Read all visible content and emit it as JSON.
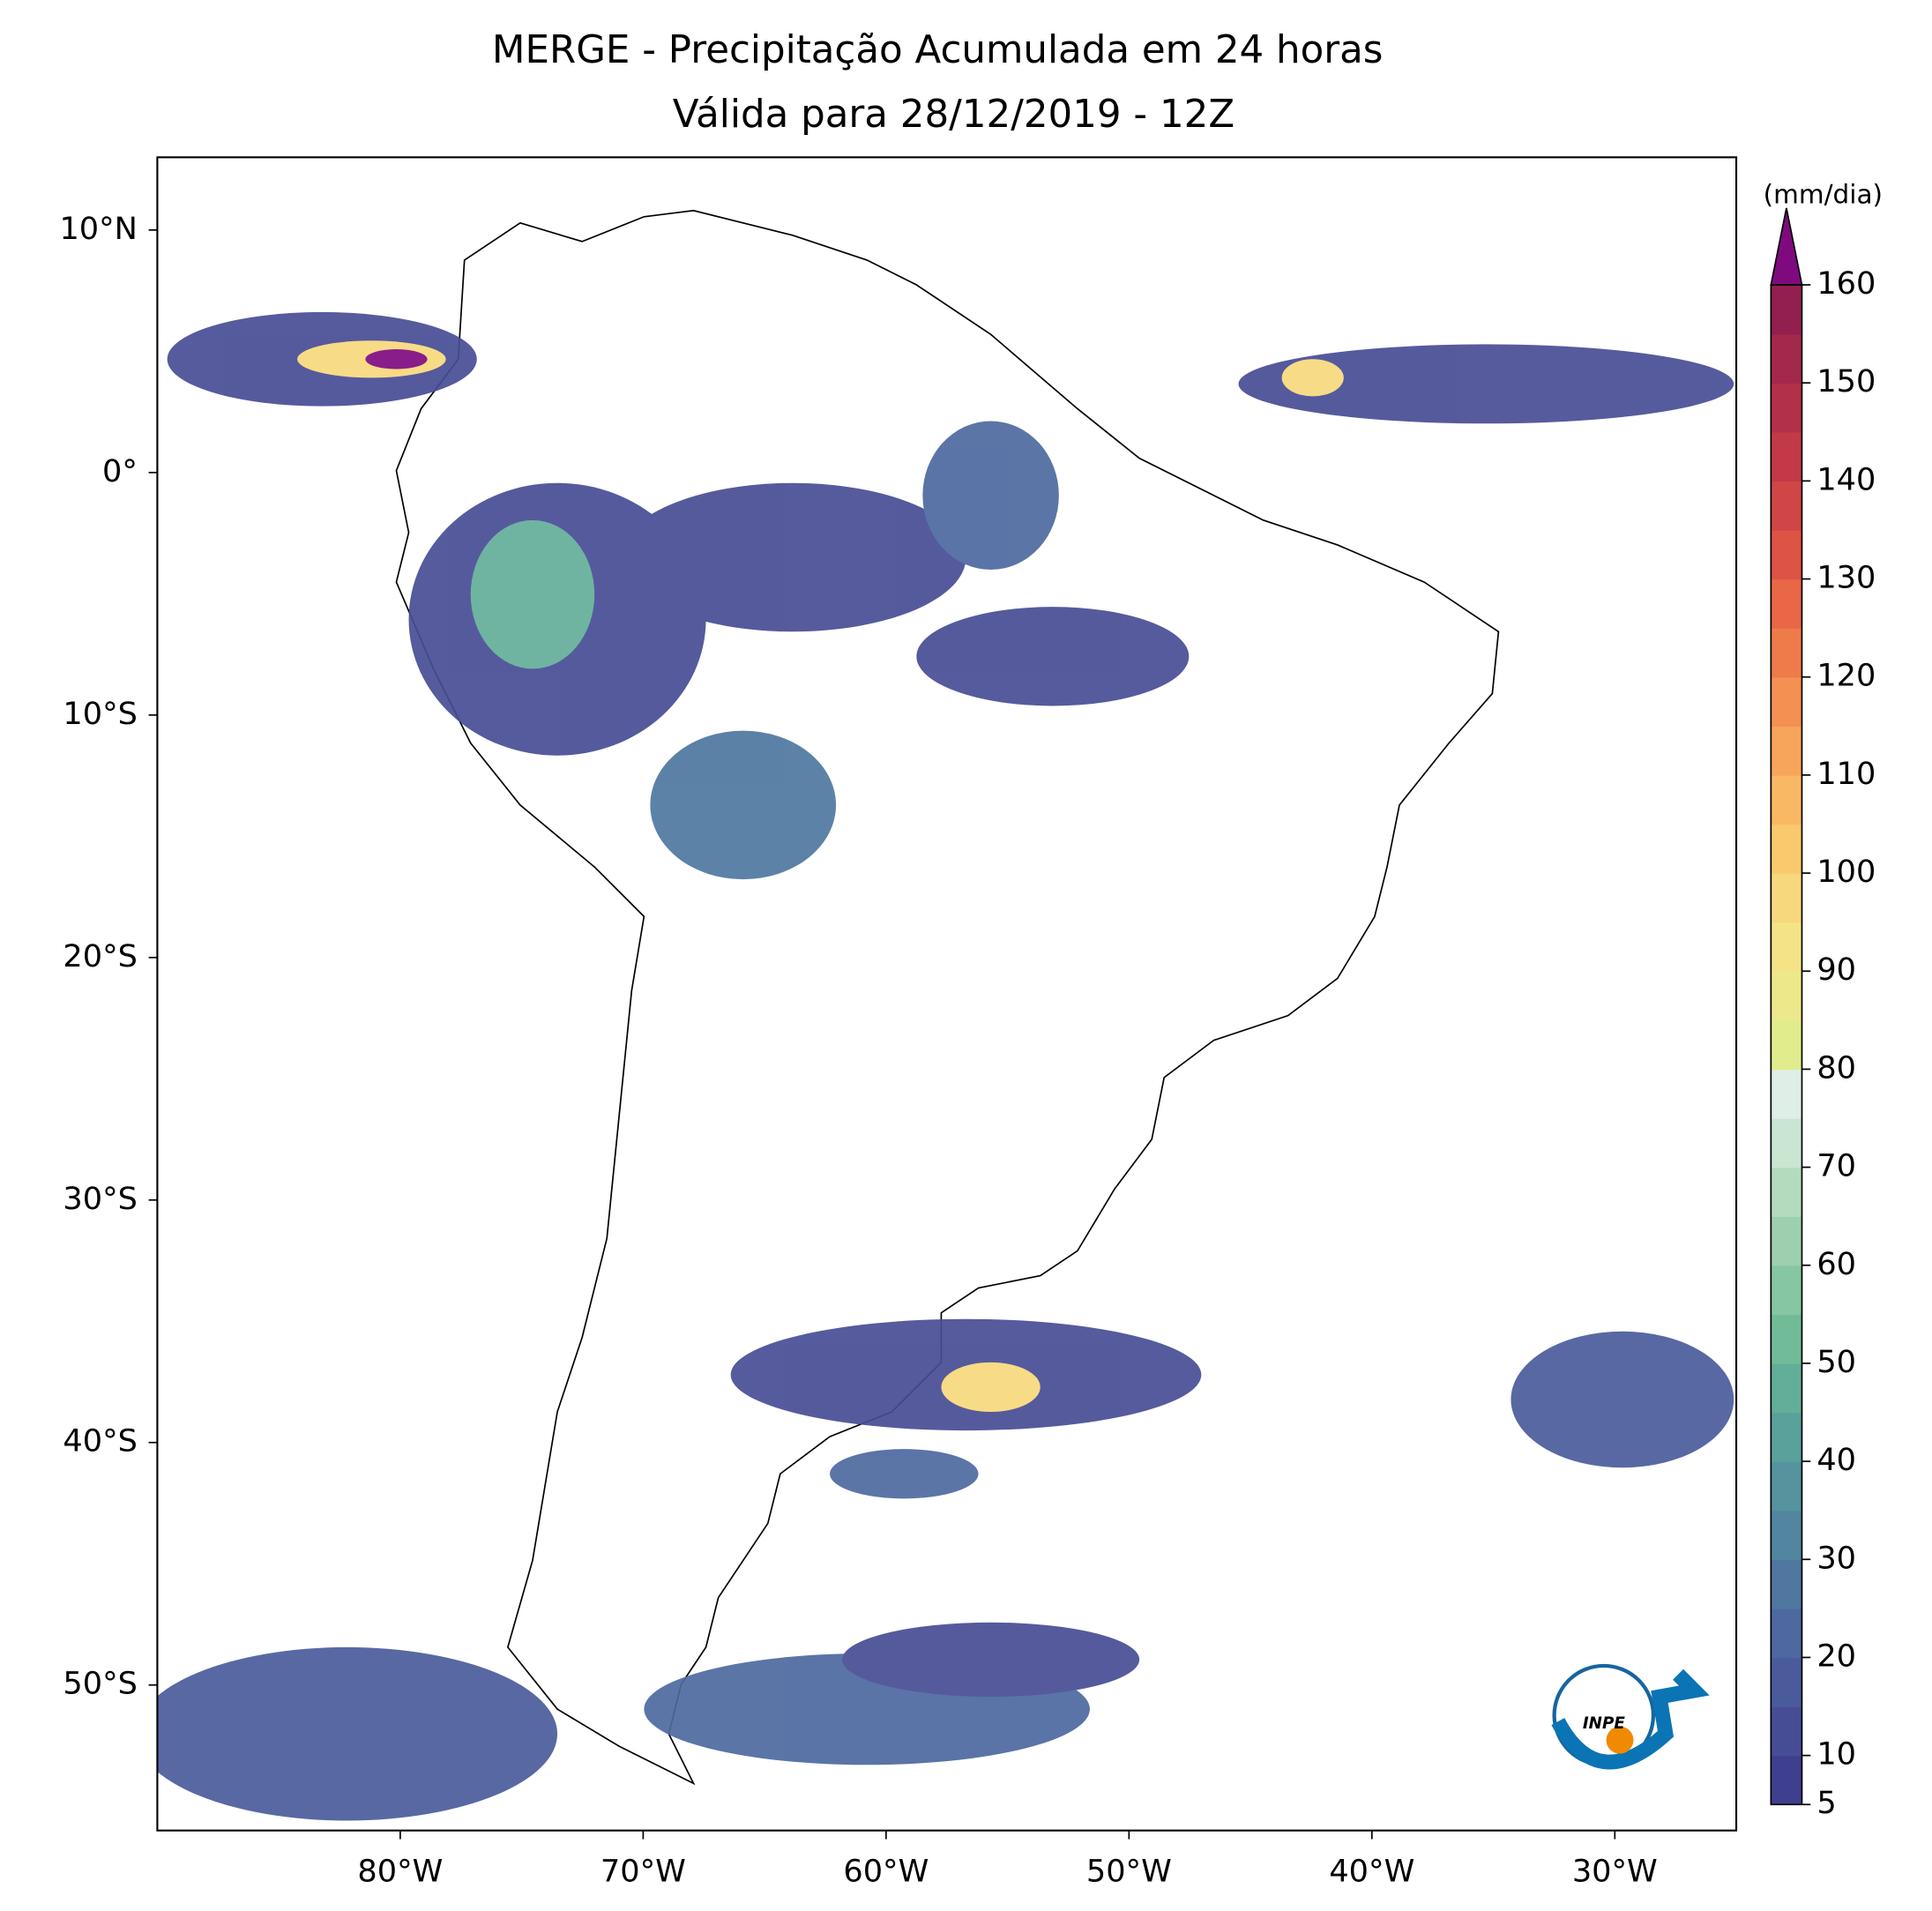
{
  "chart_data": {
    "type": "map",
    "title": "MERGE - Precipitação Acumulada em 24 horas",
    "subtitle": "Válida para 28/12/2019 - 12Z",
    "xlim": [
      -90,
      -25
    ],
    "ylim": [
      -56,
      13
    ],
    "xticks": [
      {
        "value": -80,
        "label": "80°W"
      },
      {
        "value": -70,
        "label": "70°W"
      },
      {
        "value": -60,
        "label": "60°W"
      },
      {
        "value": -50,
        "label": "50°W"
      },
      {
        "value": -40,
        "label": "40°W"
      },
      {
        "value": -30,
        "label": "30°W"
      }
    ],
    "yticks": [
      {
        "value": 10,
        "label": "10°N"
      },
      {
        "value": 0,
        "label": "0°"
      },
      {
        "value": -10,
        "label": "10°S"
      },
      {
        "value": -20,
        "label": "20°S"
      },
      {
        "value": -30,
        "label": "30°S"
      },
      {
        "value": -40,
        "label": "40°S"
      },
      {
        "value": -50,
        "label": "50°S"
      }
    ],
    "colorbar": {
      "label": "(mm/dia)",
      "lim": [
        5,
        160
      ],
      "ticks": [
        5,
        10,
        20,
        30,
        40,
        50,
        60,
        70,
        80,
        90,
        100,
        110,
        120,
        130,
        140,
        150,
        160
      ],
      "colors": [
        "#3f3f8f",
        "#474d95",
        "#4a5b9b",
        "#4d69a0",
        "#4f779f",
        "#52859f",
        "#55939e",
        "#5aa19b",
        "#63ae98",
        "#72bb99",
        "#86c6a2",
        "#9dd0ae",
        "#b5dbbf",
        "#cbe5d3",
        "#dfeee6",
        "#e1ec8c",
        "#ede98a",
        "#f4e486",
        "#f8d87c",
        "#f9c96d",
        "#f9b864",
        "#f7a55a",
        "#f49052",
        "#ef7b4a",
        "#e86746",
        "#dd5445",
        "#d04545",
        "#c23a47",
        "#b2304a",
        "#a2284c",
        "#931f4f"
      ],
      "extend_color": "#7f0a7f"
    },
    "logo": "INPE"
  }
}
